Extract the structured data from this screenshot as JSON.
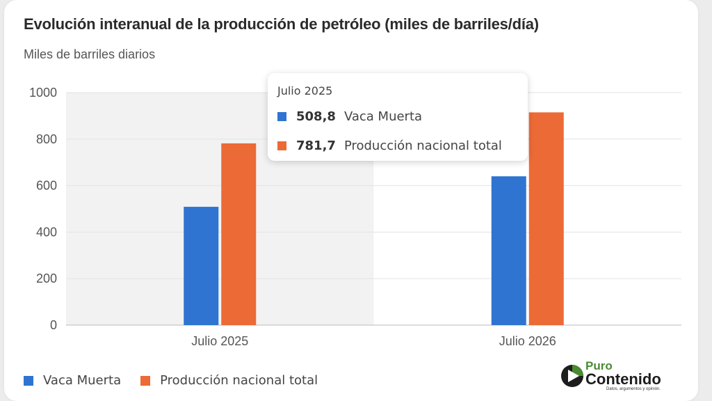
{
  "header": {
    "title": "Evolución interanual de la producción de petróleo (miles de barriles/día)"
  },
  "chart_data": {
    "type": "bar",
    "title": "Evolución interanual de la producción de petróleo (miles de barriles/día)",
    "ylabel": "Miles de barriles diarios",
    "xlabel": "",
    "categories": [
      "Julio 2025",
      "Julio 2026"
    ],
    "series": [
      {
        "name": "Vaca Muerta",
        "values": [
          508.8,
          640
        ]
      },
      {
        "name": "Producción nacional total",
        "values": [
          781.7,
          915
        ]
      }
    ],
    "ylim": [
      0,
      1000
    ],
    "yticks": [
      "0",
      "200",
      "400",
      "600",
      "800",
      "1000"
    ],
    "grid": true,
    "legend": "bottom-left",
    "highlighted_category": "Julio 2025",
    "colors": {
      "Vaca Muerta": "#2f74d0",
      "Producción nacional total": "#ec6a35"
    }
  },
  "tooltip": {
    "title": "Julio 2025",
    "rows": [
      {
        "value": "508,8",
        "name": "Vaca Muerta",
        "color": "#2f74d0"
      },
      {
        "value": "781,7",
        "name": "Producción nacional total",
        "color": "#ec6a35"
      }
    ]
  },
  "legend": {
    "items": [
      {
        "label": "Vaca Muerta",
        "color": "#2f74d0"
      },
      {
        "label": "Producción nacional total",
        "color": "#ec6a35"
      }
    ]
  },
  "logo": {
    "line1": "Puro",
    "line2": "Contenido",
    "tagline": "Datos, argumentos y opinión."
  }
}
